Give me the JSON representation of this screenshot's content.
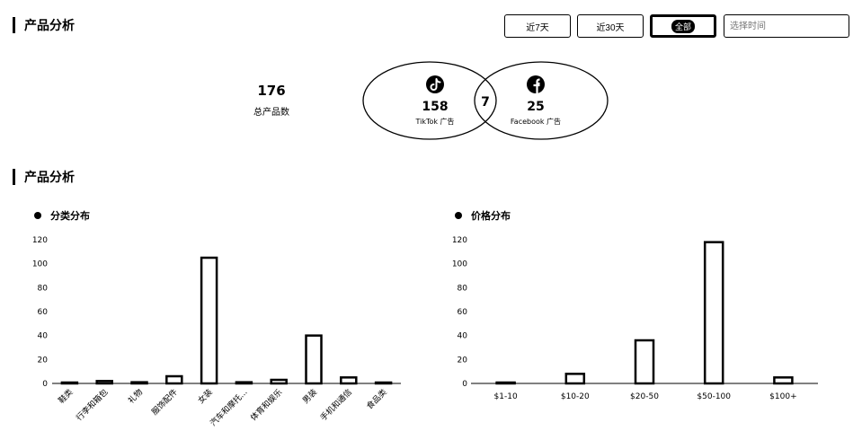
{
  "header": {
    "title": "产品分析",
    "filters": [
      {
        "label": "近7天",
        "active": false
      },
      {
        "label": "近30天",
        "active": false
      },
      {
        "label": "全部",
        "active": true
      }
    ],
    "date_placeholder": "选择时间"
  },
  "overview": {
    "total_value": "176",
    "total_label": "总产品数",
    "tiktok": {
      "value": "158",
      "label": "TikTok 广告",
      "icon": "tiktok-icon"
    },
    "facebook": {
      "value": "25",
      "label": "Facebook 广告",
      "icon": "facebook-icon"
    },
    "overlap": "7"
  },
  "section2": {
    "title": "产品分析"
  },
  "category_chart": {
    "title": "分类分布",
    "chart_data": {
      "type": "bar",
      "categories": [
        "鞋类",
        "行李和箱包",
        "礼物",
        "服饰配件",
        "女装",
        "汽车和摩托...",
        "体育和娱乐",
        "男装",
        "手机和通信",
        "食品类"
      ],
      "values": [
        0.5,
        2,
        1,
        6,
        105,
        1,
        3,
        40,
        5,
        0.5
      ],
      "ylim": [
        0,
        120
      ],
      "yticks": [
        "0",
        "20",
        "40",
        "60",
        "80",
        "100",
        "120"
      ]
    }
  },
  "price_chart": {
    "title": "价格分布",
    "chart_data": {
      "type": "bar",
      "categories": [
        "$1-10",
        "$10-20",
        "$20-50",
        "$50-100",
        "$100+"
      ],
      "values": [
        0,
        8,
        36,
        118,
        5
      ],
      "ylim": [
        0,
        120
      ],
      "yticks": [
        "0",
        "20",
        "40",
        "60",
        "80",
        "100",
        "120"
      ]
    }
  }
}
